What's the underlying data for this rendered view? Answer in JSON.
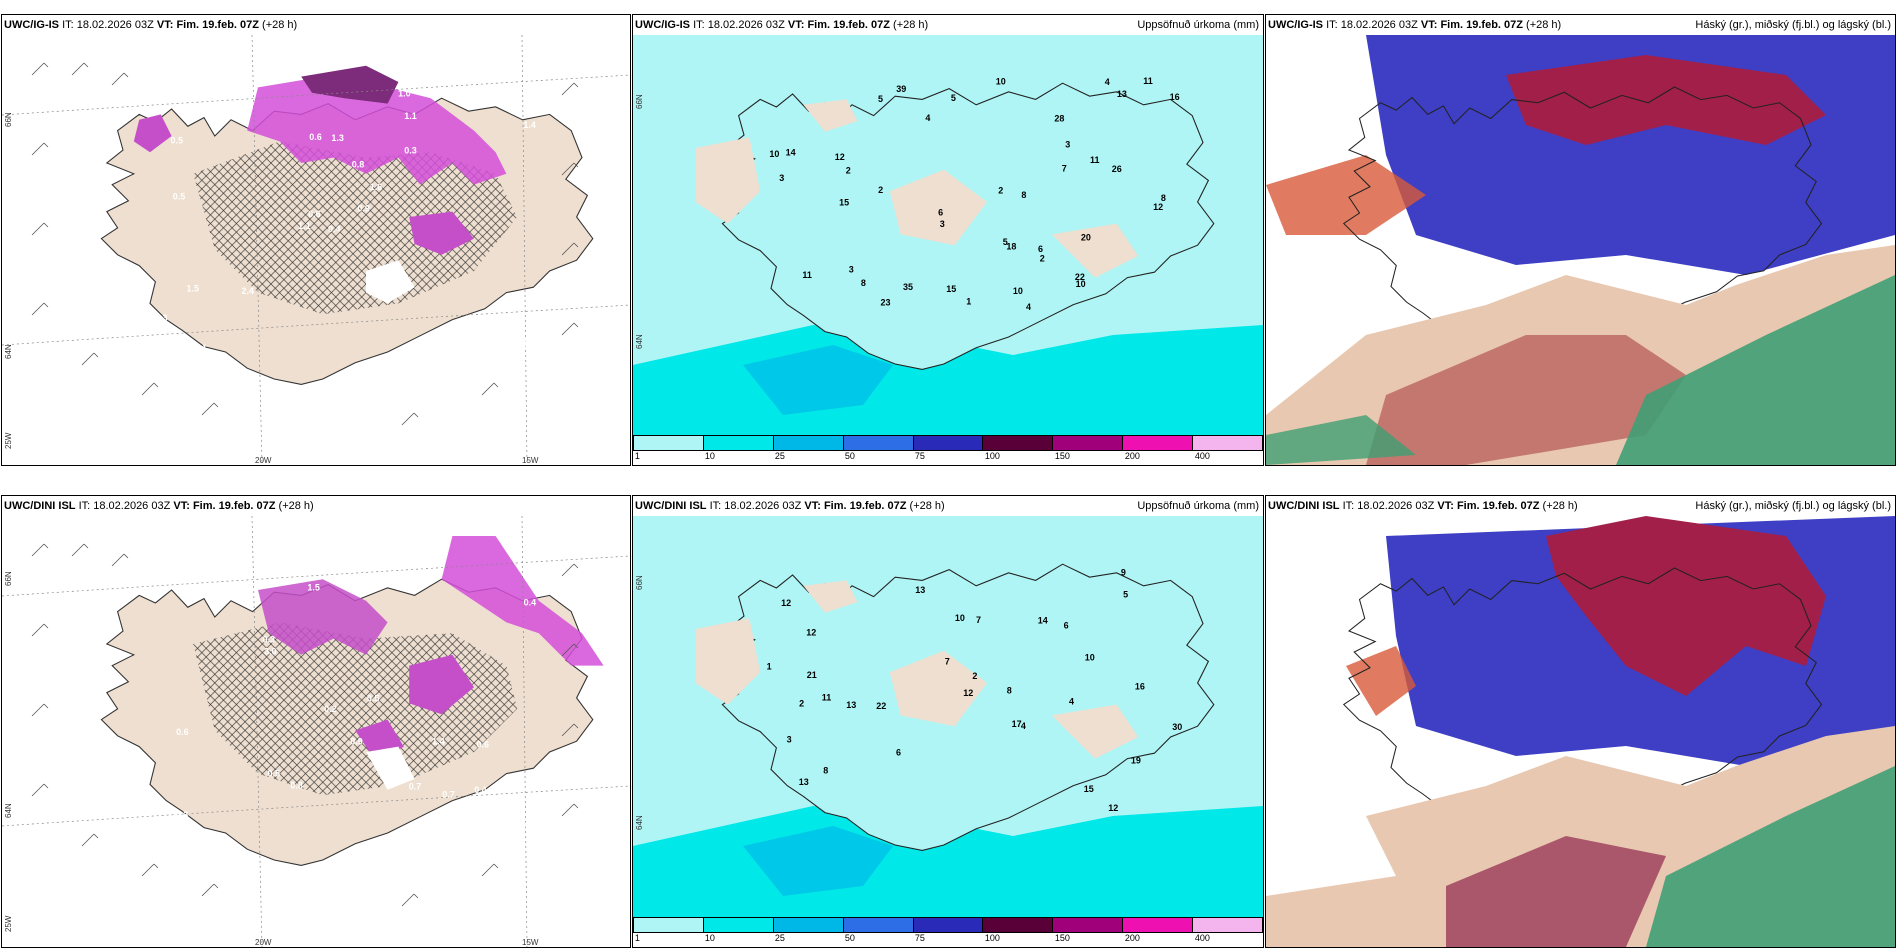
{
  "panels": [
    {
      "id": "top-left",
      "model": "UWC/IG-IS",
      "it_label": "IT:",
      "it_value": "18.02.2026 03Z",
      "vt_label": "VT:",
      "vt_value": "Fim. 19.feb. 07Z",
      "lead": "(+28 h)",
      "right_title": "",
      "lon_labels": [
        "20W",
        "15W"
      ],
      "lat_labels": [
        "66N",
        "64N"
      ],
      "corner_label": "25W",
      "values": [
        "0.4",
        "0.5",
        "0.6",
        "0.3",
        "1.6",
        "2.4",
        "1.0",
        "1.3",
        "1.1",
        "0.9",
        "0.7",
        "0.8",
        "0.5",
        "1.4",
        "1.1",
        "0.3",
        "0.4",
        "0.6",
        "0.8",
        "1.5"
      ]
    },
    {
      "id": "top-middle",
      "model": "UWC/IG-IS",
      "it_label": "IT:",
      "it_value": "18.02.2026 03Z",
      "vt_label": "VT:",
      "vt_value": "Fim. 19.feb. 07Z",
      "lead": "(+28 h)",
      "right_title": "Uppsöfnuð úrkoma (mm)",
      "lat_labels": [
        "66N",
        "64N"
      ],
      "legend": {
        "colors": [
          "#b0f5f5",
          "#00e8e8",
          "#00b8e8",
          "#2d6ee6",
          "#2a2ab8",
          "#5a0038",
          "#a0007a",
          "#ee10b0",
          "#f4b4ee"
        ],
        "ticks": [
          "1",
          "10",
          "25",
          "50",
          "75",
          "100",
          "150",
          "200",
          "400"
        ]
      },
      "values": [
        "4",
        "5",
        "3",
        "12",
        "11",
        "10",
        "12",
        "2",
        "3",
        "8",
        "11",
        "10",
        "6",
        "5",
        "7",
        "4",
        "3",
        "13",
        "20",
        "26",
        "22",
        "18",
        "23",
        "10",
        "8",
        "3",
        "15",
        "2",
        "1",
        "4",
        "2",
        "11",
        "28",
        "35",
        "39",
        "15",
        "10",
        "14",
        "8",
        "6",
        "5",
        "2",
        "16"
      ]
    },
    {
      "id": "top-right",
      "model": "UWC/IG-IS",
      "it_label": "IT:",
      "it_value": "18.02.2026 03Z",
      "vt_label": "VT:",
      "vt_value": "Fim. 19.feb. 07Z",
      "lead": "(+28 h)",
      "right_title": "Háský (gr.), miðský (fj.bl.) og lágský (bl.)"
    },
    {
      "id": "bottom-left",
      "model": "UWC/DINI ISL",
      "it_label": "IT:",
      "it_value": "18.02.2026 03Z",
      "vt_label": "VT:",
      "vt_value": "Fim. 19.feb. 07Z",
      "lead": "(+28 h)",
      "right_title": "",
      "lon_labels": [
        "20W",
        "15W"
      ],
      "lat_labels": [
        "66N",
        "64N"
      ],
      "corner_label": "25W",
      "values": [
        "0.3",
        "0.6",
        "0.5",
        "0.9",
        "1.5",
        "0.8",
        "0.4",
        "1.1",
        "0.7",
        "0.5",
        "1.0",
        "3.0",
        "0.8",
        "0.5",
        "0.7",
        "0.3",
        "1.4",
        "0.6",
        "0.2",
        "0.4"
      ]
    },
    {
      "id": "bottom-middle",
      "model": "UWC/DINI ISL",
      "it_label": "IT:",
      "it_value": "18.02.2026 03Z",
      "vt_label": "VT:",
      "vt_value": "Fim. 19.feb. 07Z",
      "lead": "(+28 h)",
      "right_title": "Uppsöfnuð úrkoma (mm)",
      "lat_labels": [
        "66N",
        "64N"
      ],
      "legend": {
        "colors": [
          "#b0f5f5",
          "#00e8e8",
          "#00b8e8",
          "#2d6ee6",
          "#2a2ab8",
          "#5a0038",
          "#a0007a",
          "#ee10b0",
          "#f4b4ee"
        ],
        "ticks": [
          "1",
          "10",
          "25",
          "50",
          "75",
          "100",
          "150",
          "200",
          "400"
        ]
      },
      "values": [
        "12",
        "11",
        "17",
        "12",
        "19",
        "12",
        "8",
        "22",
        "6",
        "10",
        "14",
        "15",
        "6",
        "13",
        "8",
        "3",
        "4",
        "2",
        "1",
        "13",
        "9",
        "7",
        "10",
        "30",
        "16",
        "21",
        "13",
        "12",
        "7",
        "5",
        "4",
        "2"
      ]
    },
    {
      "id": "bottom-right",
      "model": "UWC/DINI ISL",
      "it_label": "IT:",
      "it_value": "18.02.2026 03Z",
      "vt_label": "VT:",
      "vt_value": "Fim. 19.feb. 07Z",
      "lead": "(+28 h)",
      "right_title": "Háský (gr.), miðský (fj.bl.) og lágský (bl.)"
    }
  ]
}
